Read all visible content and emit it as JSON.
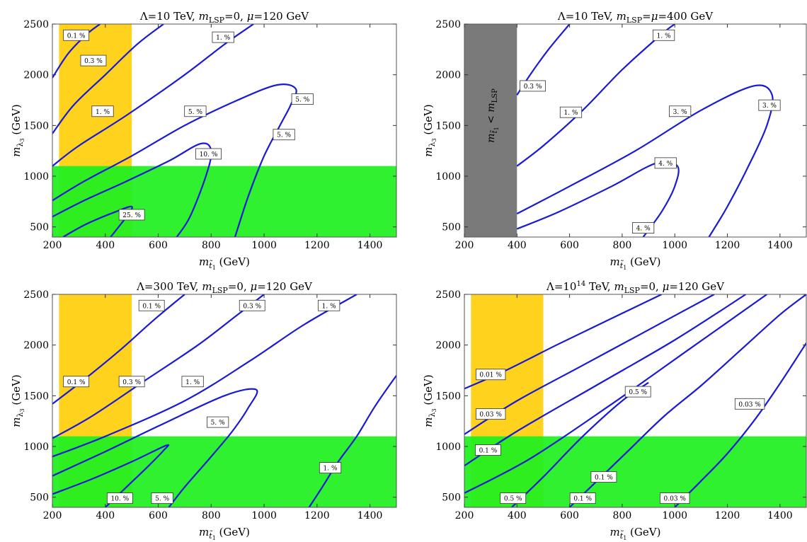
{
  "chart_data": [
    {
      "type": "line",
      "subtype": "contour",
      "title": "Λ=10 TeV, m_LSP=0, μ=120 GeV",
      "title_parts": [
        {
          "t": "Λ=10 TeV, ",
          "it": false
        },
        {
          "t": "m",
          "it": true
        },
        {
          "t": "LSP",
          "sub": true
        },
        {
          "t": "=0, ",
          "it": false
        },
        {
          "t": "μ",
          "it": true
        },
        {
          "t": "=120 GeV",
          "it": false
        }
      ],
      "xlabel_main": "m",
      "xlabel_sub": "t̃",
      "xlabel_subsub": "1",
      "xlabel_unit": " (GeV)",
      "ylabel_main": "m",
      "ylabel_sub": "λ",
      "ylabel_subsub": "3",
      "ylabel_unit": " (GeV)",
      "xlim": [
        200,
        1500
      ],
      "ylim": [
        400,
        2500
      ],
      "xticks": [
        200,
        400,
        600,
        800,
        1000,
        1200,
        1400
      ],
      "yticks": [
        500,
        1000,
        1500,
        2000,
        2500
      ],
      "grid": false,
      "regions": [
        {
          "name": "orange",
          "x": [
            225,
            500
          ],
          "y": [
            400,
            2500
          ],
          "color": "#ffd21e"
        },
        {
          "name": "green",
          "x": [
            200,
            1500
          ],
          "y": [
            400,
            1100
          ],
          "color": "#1ff01f"
        }
      ],
      "series": [
        {
          "label": "0.1 %",
          "x": [
            200,
            260,
            330,
            380
          ],
          "y": [
            1970,
            2210,
            2400,
            2500
          ]
        },
        {
          "label": "0.3 %",
          "x": [
            200,
            280,
            400,
            520,
            620
          ],
          "y": [
            1420,
            1700,
            2000,
            2300,
            2500
          ]
        },
        {
          "label": "1. %",
          "x": [
            200,
            300,
            480,
            700,
            850,
            960
          ],
          "y": [
            1100,
            1300,
            1600,
            2000,
            2300,
            2500
          ]
        },
        {
          "label": "5. %",
          "x": [
            200,
            320,
            500,
            700,
            900,
            1050,
            1120,
            1100,
            1060,
            1000,
            940,
            890
          ],
          "y": [
            760,
            950,
            1200,
            1500,
            1750,
            1900,
            1860,
            1700,
            1500,
            1200,
            800,
            400
          ]
        },
        {
          "label": "10. %",
          "x": [
            200,
            320,
            480,
            640,
            760,
            800,
            780,
            720,
            670
          ],
          "y": [
            600,
            760,
            950,
            1150,
            1320,
            1250,
            1000,
            600,
            400
          ]
        },
        {
          "label": "25. %",
          "x": [
            240,
            330,
            440,
            500,
            480,
            420
          ],
          "y": [
            400,
            530,
            650,
            700,
            600,
            400
          ]
        }
      ],
      "annotations": [
        {
          "text": "0.1 %",
          "x": 290,
          "y": 2390
        },
        {
          "text": "0.3 %",
          "x": 355,
          "y": 2140
        },
        {
          "text": "1. %",
          "x": 845,
          "y": 2370
        },
        {
          "text": "1. %",
          "x": 390,
          "y": 1640
        },
        {
          "text": "5. %",
          "x": 740,
          "y": 1640
        },
        {
          "text": "5. %",
          "x": 1145,
          "y": 1760
        },
        {
          "text": "5. %",
          "x": 1075,
          "y": 1410
        },
        {
          "text": "10. %",
          "x": 790,
          "y": 1220
        },
        {
          "text": "25. %",
          "x": 500,
          "y": 620
        }
      ]
    },
    {
      "type": "line",
      "subtype": "contour",
      "title": "Λ=10 TeV, m_LSP=μ=400 GeV",
      "title_parts": [
        {
          "t": "Λ=10 TeV, ",
          "it": false
        },
        {
          "t": "m",
          "it": true
        },
        {
          "t": "LSP",
          "sub": true
        },
        {
          "t": "=",
          "it": false
        },
        {
          "t": "μ",
          "it": true
        },
        {
          "t": "=400 GeV",
          "it": false
        }
      ],
      "xlabel_main": "m",
      "xlabel_sub": "t̃",
      "xlabel_subsub": "1",
      "xlabel_unit": " (GeV)",
      "ylabel_main": "m",
      "ylabel_sub": "λ",
      "ylabel_subsub": "3",
      "ylabel_unit": " (GeV)",
      "xlim": [
        200,
        1500
      ],
      "ylim": [
        400,
        2500
      ],
      "xticks": [
        200,
        400,
        600,
        800,
        1000,
        1200,
        1400
      ],
      "yticks": [
        500,
        1000,
        1500,
        2000,
        2500
      ],
      "grid": false,
      "regions": [
        {
          "name": "grey",
          "x": [
            200,
            400
          ],
          "y": [
            400,
            2500
          ],
          "color": "#7a7a7a"
        }
      ],
      "region_label": {
        "main": "m",
        "sub": "t̃",
        "subsub": "1",
        "rest": " < m",
        "rest_sub": "LSP"
      },
      "series": [
        {
          "label": "0.3 %",
          "x": [
            400,
            450,
            520,
            600
          ],
          "y": [
            1800,
            2000,
            2250,
            2500
          ]
        },
        {
          "label": "1. %",
          "x": [
            400,
            500,
            650,
            800,
            950,
            1000
          ],
          "y": [
            1100,
            1300,
            1650,
            2050,
            2400,
            2500
          ]
        },
        {
          "label": "3. %",
          "x": [
            400,
            600,
            850,
            1100,
            1300,
            1370,
            1350,
            1280,
            1200,
            1130
          ],
          "y": [
            630,
            900,
            1250,
            1650,
            1890,
            1800,
            1500,
            1100,
            700,
            400
          ]
        },
        {
          "label": "4. %",
          "x": [
            400,
            560,
            760,
            930,
            1010,
            1000,
            950,
            880
          ],
          "y": [
            480,
            650,
            900,
            1130,
            1100,
            900,
            650,
            400
          ]
        }
      ],
      "annotations": [
        {
          "text": "1. %",
          "x": 958,
          "y": 2390
        },
        {
          "text": "0.3 %",
          "x": 460,
          "y": 1890
        },
        {
          "text": "1. %",
          "x": 605,
          "y": 1630
        },
        {
          "text": "3. %",
          "x": 1020,
          "y": 1640
        },
        {
          "text": "3. %",
          "x": 1360,
          "y": 1700
        },
        {
          "text": "4. %",
          "x": 965,
          "y": 1130
        },
        {
          "text": "4. %",
          "x": 880,
          "y": 490
        }
      ]
    },
    {
      "type": "line",
      "subtype": "contour",
      "title": "Λ=300 TeV, m_LSP=0, μ=120 GeV",
      "title_parts": [
        {
          "t": "Λ=300 TeV, ",
          "it": false
        },
        {
          "t": "m",
          "it": true
        },
        {
          "t": "LSP",
          "sub": true
        },
        {
          "t": "=0, ",
          "it": false
        },
        {
          "t": "μ",
          "it": true
        },
        {
          "t": "=120 GeV",
          "it": false
        }
      ],
      "xlabel_main": "m",
      "xlabel_sub": "t̃",
      "xlabel_subsub": "1",
      "xlabel_unit": " (GeV)",
      "ylabel_main": "m",
      "ylabel_sub": "λ",
      "ylabel_subsub": "3",
      "ylabel_unit": " (GeV)",
      "xlim": [
        200,
        1500
      ],
      "ylim": [
        400,
        2500
      ],
      "xticks": [
        200,
        400,
        600,
        800,
        1000,
        1200,
        1400
      ],
      "yticks": [
        500,
        1000,
        1500,
        2000,
        2500
      ],
      "grid": false,
      "regions": [
        {
          "name": "orange",
          "x": [
            225,
            500
          ],
          "y": [
            400,
            2500
          ],
          "color": "#ffd21e"
        },
        {
          "name": "green",
          "x": [
            200,
            1500
          ],
          "y": [
            400,
            1100
          ],
          "color": "#1ff01f"
        }
      ],
      "series": [
        {
          "label": "0.1 %",
          "x": [
            200,
            320,
            460,
            580,
            700
          ],
          "y": [
            1420,
            1660,
            1960,
            2240,
            2500
          ]
        },
        {
          "label": "0.3 %",
          "x": [
            200,
            350,
            550,
            750,
            900,
            1000
          ],
          "y": [
            1080,
            1300,
            1650,
            2000,
            2300,
            2500
          ]
        },
        {
          "label": "1. %",
          "x": [
            200,
            400,
            700,
            950,
            1150,
            1350
          ],
          "y": [
            900,
            1100,
            1450,
            1850,
            2200,
            2500
          ]
        },
        {
          "label": "5. %",
          "x": [
            200,
            400,
            600,
            850,
            970,
            940,
            880,
            800,
            700,
            640
          ],
          "y": [
            710,
            950,
            1200,
            1500,
            1560,
            1380,
            1150,
            900,
            600,
            400
          ]
        },
        {
          "label": "10. %",
          "x": [
            200,
            350,
            500,
            630,
            620,
            560,
            480,
            400
          ],
          "y": [
            530,
            680,
            850,
            1010,
            960,
            800,
            600,
            400
          ]
        },
        {
          "label": "1. %",
          "x": [
            1170,
            1220,
            1280,
            1350,
            1420,
            1500
          ],
          "y": [
            400,
            600,
            850,
            1100,
            1400,
            1700
          ]
        }
      ],
      "annotations": [
        {
          "text": "0.1 %",
          "x": 575,
          "y": 2390
        },
        {
          "text": "0.3 %",
          "x": 955,
          "y": 2390
        },
        {
          "text": "1. %",
          "x": 1245,
          "y": 2390
        },
        {
          "text": "0.1 %",
          "x": 290,
          "y": 1640
        },
        {
          "text": "0.3 %",
          "x": 500,
          "y": 1640
        },
        {
          "text": "1. %",
          "x": 730,
          "y": 1640
        },
        {
          "text": "5. %",
          "x": 825,
          "y": 1240
        },
        {
          "text": "1. %",
          "x": 1250,
          "y": 790
        },
        {
          "text": "10. %",
          "x": 455,
          "y": 490
        },
        {
          "text": "5. %",
          "x": 615,
          "y": 490
        }
      ]
    },
    {
      "type": "line",
      "subtype": "contour",
      "title": "Λ=10^14 TeV, m_LSP=0, μ=120 GeV",
      "title_parts": [
        {
          "t": "Λ=10",
          "it": false
        },
        {
          "t": "14",
          "sup": true
        },
        {
          "t": " TeV, ",
          "it": false
        },
        {
          "t": "m",
          "it": true
        },
        {
          "t": "LSP",
          "sub": true
        },
        {
          "t": "=0, ",
          "it": false
        },
        {
          "t": "μ",
          "it": true
        },
        {
          "t": "=120 GeV",
          "it": false
        }
      ],
      "xlabel_main": "m",
      "xlabel_sub": "t̃",
      "xlabel_subsub": "1",
      "xlabel_unit": " (GeV)",
      "ylabel_main": "m",
      "ylabel_sub": "λ",
      "ylabel_subsub": "3",
      "ylabel_unit": " (GeV)",
      "xlim": [
        200,
        1500
      ],
      "ylim": [
        400,
        2500
      ],
      "xticks": [
        200,
        400,
        600,
        800,
        1000,
        1200,
        1400
      ],
      "yticks": [
        500,
        1000,
        1500,
        2000,
        2500
      ],
      "grid": false,
      "regions": [
        {
          "name": "orange",
          "x": [
            225,
            500
          ],
          "y": [
            400,
            2500
          ],
          "color": "#ffd21e"
        },
        {
          "name": "green",
          "x": [
            200,
            1500
          ],
          "y": [
            400,
            1100
          ],
          "color": "#1ff01f"
        }
      ],
      "series": [
        {
          "label": "0.01 %",
          "x": [
            200,
            350,
            550,
            750,
            950
          ],
          "y": [
            1570,
            1740,
            2000,
            2250,
            2500
          ]
        },
        {
          "label": "0.03 %",
          "x": [
            200,
            400,
            650,
            900,
            1150
          ],
          "y": [
            1120,
            1450,
            1800,
            2150,
            2500
          ]
        },
        {
          "label": "0.1 %",
          "x": [
            200,
            400,
            700,
            1000,
            1270
          ],
          "y": [
            810,
            1150,
            1600,
            2050,
            2500
          ]
        },
        {
          "label": "0.3 %",
          "x": [
            200,
            450,
            750,
            1050,
            1350
          ],
          "y": [
            540,
            880,
            1400,
            1950,
            2500
          ]
        },
        {
          "label": "0.5 %",
          "x": [
            380,
            500,
            650,
            800,
            900
          ],
          "y": [
            400,
            700,
            1100,
            1450,
            1630
          ]
        },
        {
          "label": "0.1 %",
          "x": [
            600,
            700,
            820,
            960,
            1100,
            1250,
            1400,
            1500
          ],
          "y": [
            400,
            650,
            950,
            1300,
            1600,
            1950,
            2300,
            2500
          ]
        },
        {
          "label": "0.03 %",
          "x": [
            1000,
            1100,
            1200,
            1300,
            1400,
            1500
          ],
          "y": [
            400,
            660,
            930,
            1250,
            1620,
            2020
          ]
        }
      ],
      "annotations": [
        {
          "text": "0.01 %",
          "x": 300,
          "y": 1710
        },
        {
          "text": "0.03 %",
          "x": 300,
          "y": 1320
        },
        {
          "text": "0.1 %",
          "x": 290,
          "y": 965
        },
        {
          "text": "0.5 %",
          "x": 860,
          "y": 1540
        },
        {
          "text": "0.03 %",
          "x": 1285,
          "y": 1420
        },
        {
          "text": "0.1 %",
          "x": 730,
          "y": 700
        },
        {
          "text": "0.5 %",
          "x": 385,
          "y": 490
        },
        {
          "text": "0.1 %",
          "x": 650,
          "y": 490
        },
        {
          "text": "0.03 %",
          "x": 1000,
          "y": 490
        }
      ]
    }
  ],
  "colors": {
    "curve": "#1a1ad6",
    "frame": "#555555",
    "label_box_fill": "#ffffff",
    "label_box_stroke": "#333333"
  }
}
